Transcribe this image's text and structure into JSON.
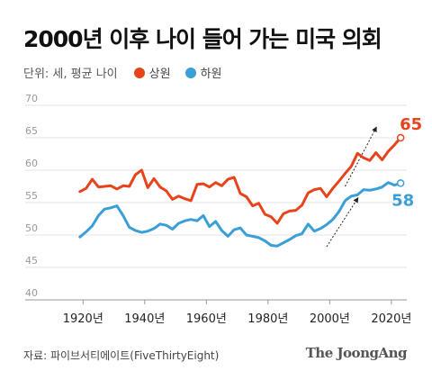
{
  "title": "2000년 이후 나이 들어 가는 미국 의회",
  "legend": {
    "unit": "단위: 세, 평균 나이",
    "items": [
      {
        "label": "상원",
        "color": "#e8441c"
      },
      {
        "label": "하원",
        "color": "#3a9fd6"
      }
    ]
  },
  "source": "자료: 파이브서티에이트(FiveThirtyEight)",
  "brand": "The JoongAng",
  "chart_data": {
    "type": "line",
    "title": "2000년 이후 나이 들어 가는 미국 의회",
    "xlabel": "",
    "ylabel": "",
    "xlim": [
      1910,
      2025
    ],
    "ylim": [
      40,
      70
    ],
    "yticks": [
      40,
      45,
      50,
      55,
      60,
      65,
      70
    ],
    "xticks": [
      "1920년",
      "1940년",
      "1960년",
      "1980년",
      "2000년",
      "2020년"
    ],
    "xtick_values": [
      1920,
      1940,
      1960,
      1980,
      2000,
      2020
    ],
    "grid": true,
    "legend_position": "top-left",
    "end_labels": {
      "senate": "65",
      "house": "58"
    },
    "series": [
      {
        "name": "상원",
        "color": "#e8441c",
        "x": [
          1919,
          1921,
          1923,
          1925,
          1927,
          1929,
          1931,
          1933,
          1935,
          1937,
          1939,
          1941,
          1943,
          1945,
          1947,
          1949,
          1951,
          1953,
          1955,
          1957,
          1959,
          1961,
          1963,
          1965,
          1967,
          1969,
          1971,
          1973,
          1975,
          1977,
          1979,
          1981,
          1983,
          1985,
          1987,
          1989,
          1991,
          1993,
          1995,
          1997,
          1999,
          2001,
          2003,
          2005,
          2007,
          2009,
          2011,
          2013,
          2015,
          2017,
          2019,
          2021,
          2023
        ],
        "y": [
          56.7,
          57.2,
          58.6,
          57.4,
          57.5,
          57.6,
          57.1,
          57.6,
          57.5,
          59.3,
          60.0,
          57.3,
          58.7,
          57.4,
          56.8,
          55.5,
          56.0,
          55.6,
          55.3,
          57.8,
          57.9,
          57.4,
          58.1,
          57.6,
          58.6,
          58.9,
          56.4,
          55.9,
          54.5,
          54.9,
          53.2,
          52.8,
          51.8,
          53.3,
          53.7,
          53.8,
          54.6,
          56.5,
          57.0,
          57.2,
          55.9,
          57.2,
          58.3,
          59.5,
          60.6,
          62.6,
          61.9,
          61.5,
          62.7,
          61.6,
          62.9,
          63.9,
          65.0
        ]
      },
      {
        "name": "하원",
        "color": "#3a9fd6",
        "x": [
          1919,
          1921,
          1923,
          1925,
          1927,
          1929,
          1931,
          1933,
          1935,
          1937,
          1939,
          1941,
          1943,
          1945,
          1947,
          1949,
          1951,
          1953,
          1955,
          1957,
          1959,
          1961,
          1963,
          1965,
          1967,
          1969,
          1971,
          1973,
          1975,
          1977,
          1979,
          1981,
          1983,
          1985,
          1987,
          1989,
          1991,
          1993,
          1995,
          1997,
          1999,
          2001,
          2003,
          2005,
          2007,
          2009,
          2011,
          2013,
          2015,
          2017,
          2019,
          2021,
          2023
        ],
        "y": [
          49.7,
          50.5,
          51.4,
          53.0,
          54.0,
          54.2,
          54.5,
          53.0,
          51.2,
          50.7,
          50.4,
          50.6,
          51.0,
          51.7,
          51.5,
          50.9,
          51.8,
          52.2,
          52.4,
          52.2,
          53.0,
          51.3,
          52.1,
          50.7,
          49.8,
          50.8,
          51.1,
          50.0,
          49.8,
          49.6,
          49.1,
          48.4,
          48.3,
          48.8,
          49.3,
          49.9,
          50.2,
          51.7,
          50.6,
          51.0,
          51.6,
          52.4,
          53.6,
          55.3,
          56.0,
          56.2,
          57.0,
          56.9,
          57.1,
          57.4,
          58.1,
          57.7,
          58.0
        ]
      }
    ]
  }
}
